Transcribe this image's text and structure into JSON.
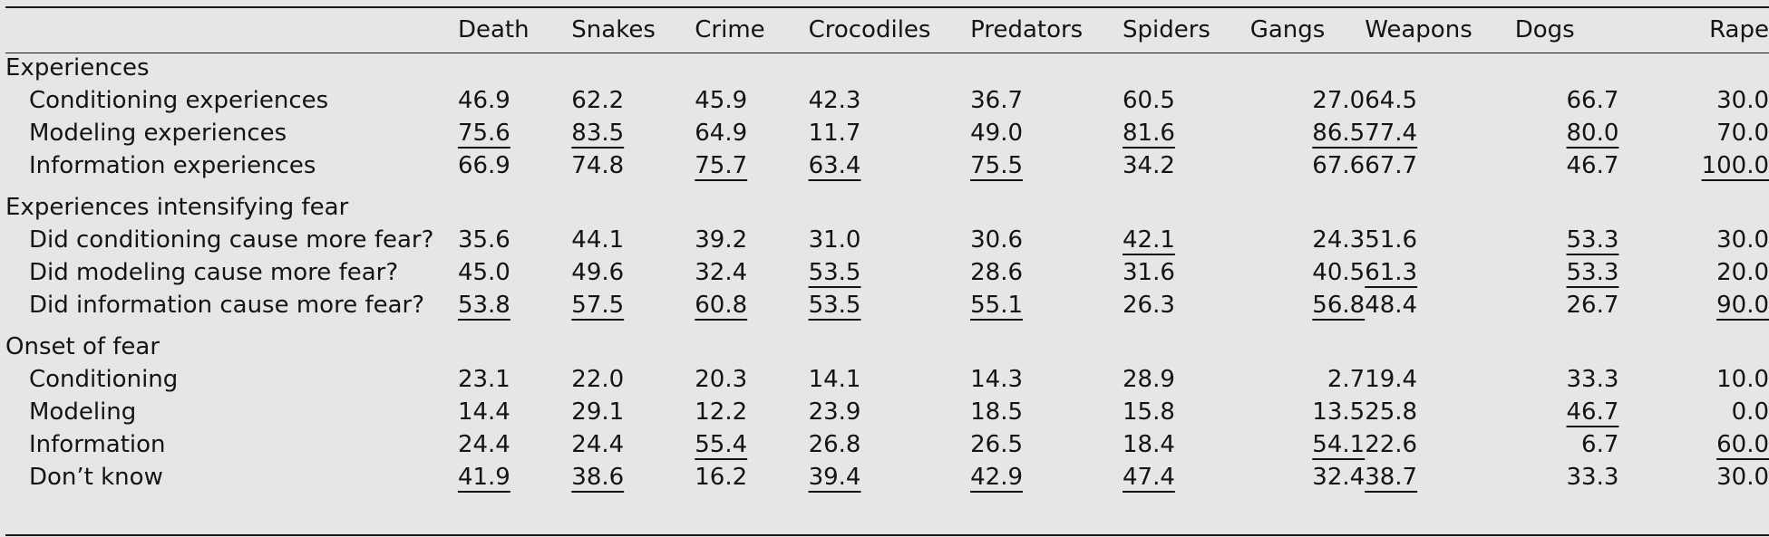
{
  "columns": [
    "Death",
    "Snakes",
    "Crime",
    "Crocodiles",
    "Predators",
    "Spiders",
    "Gangs",
    "Weapons",
    "Dogs",
    "Rape"
  ],
  "sections": [
    {
      "title": "Experiences",
      "rows": [
        {
          "label": "Conditioning experiences",
          "cells": [
            {
              "v": "46.9",
              "u": false
            },
            {
              "v": "62.2",
              "u": false
            },
            {
              "v": "45.9",
              "u": false
            },
            {
              "v": "42.3",
              "u": false
            },
            {
              "v": "36.7",
              "u": false
            },
            {
              "v": "60.5",
              "u": false
            },
            {
              "v": "27.0",
              "u": false
            },
            {
              "v": "64.5",
              "u": false
            },
            {
              "v": "66.7",
              "u": false
            },
            {
              "v": "30.0",
              "u": false
            }
          ]
        },
        {
          "label": "Modeling experiences",
          "cells": [
            {
              "v": "75.6",
              "u": true
            },
            {
              "v": "83.5",
              "u": true
            },
            {
              "v": "64.9",
              "u": false
            },
            {
              "v": "11.7",
              "u": false
            },
            {
              "v": "49.0",
              "u": false
            },
            {
              "v": "81.6",
              "u": true
            },
            {
              "v": "86.5",
              "u": true
            },
            {
              "v": "77.4",
              "u": true
            },
            {
              "v": "80.0",
              "u": true
            },
            {
              "v": "70.0",
              "u": false
            }
          ]
        },
        {
          "label": "Information experiences",
          "cells": [
            {
              "v": "66.9",
              "u": false
            },
            {
              "v": "74.8",
              "u": false
            },
            {
              "v": "75.7",
              "u": true
            },
            {
              "v": "63.4",
              "u": true
            },
            {
              "v": "75.5",
              "u": true
            },
            {
              "v": "34.2",
              "u": false
            },
            {
              "v": "67.6",
              "u": false
            },
            {
              "v": "67.7",
              "u": false
            },
            {
              "v": "46.7",
              "u": false
            },
            {
              "v": "100.0",
              "u": true
            }
          ]
        }
      ]
    },
    {
      "title": "Experiences intensifying fear",
      "rows": [
        {
          "label": "Did conditioning cause more fear?",
          "cells": [
            {
              "v": "35.6",
              "u": false
            },
            {
              "v": "44.1",
              "u": false
            },
            {
              "v": "39.2",
              "u": false
            },
            {
              "v": "31.0",
              "u": false
            },
            {
              "v": "30.6",
              "u": false
            },
            {
              "v": "42.1",
              "u": true
            },
            {
              "v": "24.3",
              "u": false
            },
            {
              "v": "51.6",
              "u": false
            },
            {
              "v": "53.3",
              "u": true
            },
            {
              "v": "30.0",
              "u": false
            }
          ]
        },
        {
          "label": "Did modeling cause more fear?",
          "cells": [
            {
              "v": "45.0",
              "u": false
            },
            {
              "v": "49.6",
              "u": false
            },
            {
              "v": "32.4",
              "u": false
            },
            {
              "v": "53.5",
              "u": true
            },
            {
              "v": "28.6",
              "u": false
            },
            {
              "v": "31.6",
              "u": false
            },
            {
              "v": "40.5",
              "u": false
            },
            {
              "v": "61.3",
              "u": true
            },
            {
              "v": "53.3",
              "u": true
            },
            {
              "v": "20.0",
              "u": false
            }
          ]
        },
        {
          "label": "Did information cause more fear?",
          "cells": [
            {
              "v": "53.8",
              "u": true
            },
            {
              "v": "57.5",
              "u": true
            },
            {
              "v": "60.8",
              "u": true
            },
            {
              "v": "53.5",
              "u": true
            },
            {
              "v": "55.1",
              "u": true
            },
            {
              "v": "26.3",
              "u": false
            },
            {
              "v": "56.8",
              "u": true
            },
            {
              "v": "48.4",
              "u": false
            },
            {
              "v": "26.7",
              "u": false
            },
            {
              "v": "90.0",
              "u": true
            }
          ]
        }
      ]
    },
    {
      "title": "Onset of fear",
      "rows": [
        {
          "label": "Conditioning",
          "cells": [
            {
              "v": "23.1",
              "u": false
            },
            {
              "v": "22.0",
              "u": false
            },
            {
              "v": "20.3",
              "u": false
            },
            {
              "v": "14.1",
              "u": false
            },
            {
              "v": "14.3",
              "u": false
            },
            {
              "v": "28.9",
              "u": false
            },
            {
              "v": "2.7",
              "u": false
            },
            {
              "v": "19.4",
              "u": false
            },
            {
              "v": "33.3",
              "u": false
            },
            {
              "v": "10.0",
              "u": false
            }
          ]
        },
        {
          "label": "Modeling",
          "cells": [
            {
              "v": "14.4",
              "u": false
            },
            {
              "v": "29.1",
              "u": false
            },
            {
              "v": "12.2",
              "u": false
            },
            {
              "v": "23.9",
              "u": false
            },
            {
              "v": "18.5",
              "u": false
            },
            {
              "v": "15.8",
              "u": false
            },
            {
              "v": "13.5",
              "u": false
            },
            {
              "v": "25.8",
              "u": false
            },
            {
              "v": "46.7",
              "u": true
            },
            {
              "v": "0.0",
              "u": false
            }
          ]
        },
        {
          "label": "Information",
          "cells": [
            {
              "v": "24.4",
              "u": false
            },
            {
              "v": "24.4",
              "u": false
            },
            {
              "v": "55.4",
              "u": true
            },
            {
              "v": "26.8",
              "u": false
            },
            {
              "v": "26.5",
              "u": false
            },
            {
              "v": "18.4",
              "u": false
            },
            {
              "v": "54.1",
              "u": true
            },
            {
              "v": "22.6",
              "u": false
            },
            {
              "v": "6.7",
              "u": false
            },
            {
              "v": "60.0",
              "u": true
            }
          ]
        },
        {
          "label": "Don’t know",
          "cells": [
            {
              "v": "41.9",
              "u": true
            },
            {
              "v": "38.6",
              "u": true
            },
            {
              "v": "16.2",
              "u": false
            },
            {
              "v": "39.4",
              "u": true
            },
            {
              "v": "42.9",
              "u": true
            },
            {
              "v": "47.4",
              "u": true
            },
            {
              "v": "32.4",
              "u": false
            },
            {
              "v": "38.7",
              "u": true
            },
            {
              "v": "33.3",
              "u": false
            },
            {
              "v": "30.0",
              "u": false
            }
          ]
        }
      ]
    }
  ]
}
